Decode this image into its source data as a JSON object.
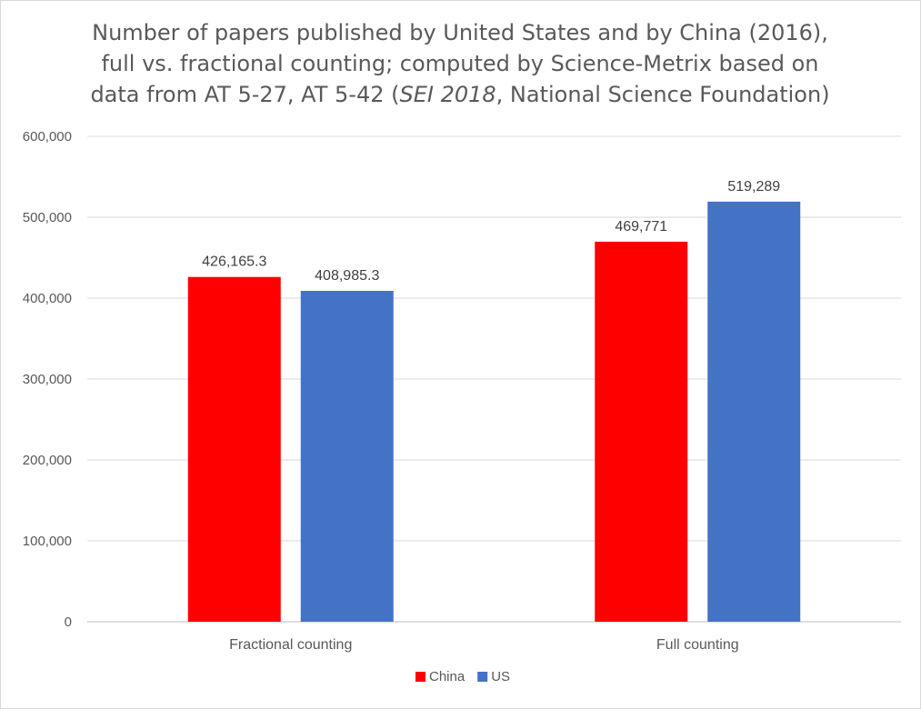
{
  "chart_data": {
    "type": "bar",
    "title": {
      "line1": "Number of papers published by United States and by China (2016),",
      "line2": "full vs. fractional counting; computed by Science-Metrix based on",
      "line3_pre": "data from AT 5-27, AT 5-42 (",
      "line3_italic": "SEI 2018",
      "line3_post": ", National Science Foundation)"
    },
    "categories": [
      "Fractional counting",
      "Full counting"
    ],
    "series": [
      {
        "name": "China",
        "color": "#ff0000",
        "values": [
          426165.3,
          469771
        ],
        "labels": [
          "426,165.3",
          "469,771"
        ]
      },
      {
        "name": "US",
        "color": "#4472c4",
        "values": [
          408985.3,
          519289
        ],
        "labels": [
          "408,985.3",
          "519,289"
        ]
      }
    ],
    "ylim": [
      0,
      600000
    ],
    "yticks": [
      0,
      100000,
      200000,
      300000,
      400000,
      500000,
      600000
    ],
    "ytick_labels": [
      "0",
      "100,000",
      "200,000",
      "300,000",
      "400,000",
      "500,000",
      "600,000"
    ],
    "grid": true,
    "legend_position": "bottom"
  }
}
